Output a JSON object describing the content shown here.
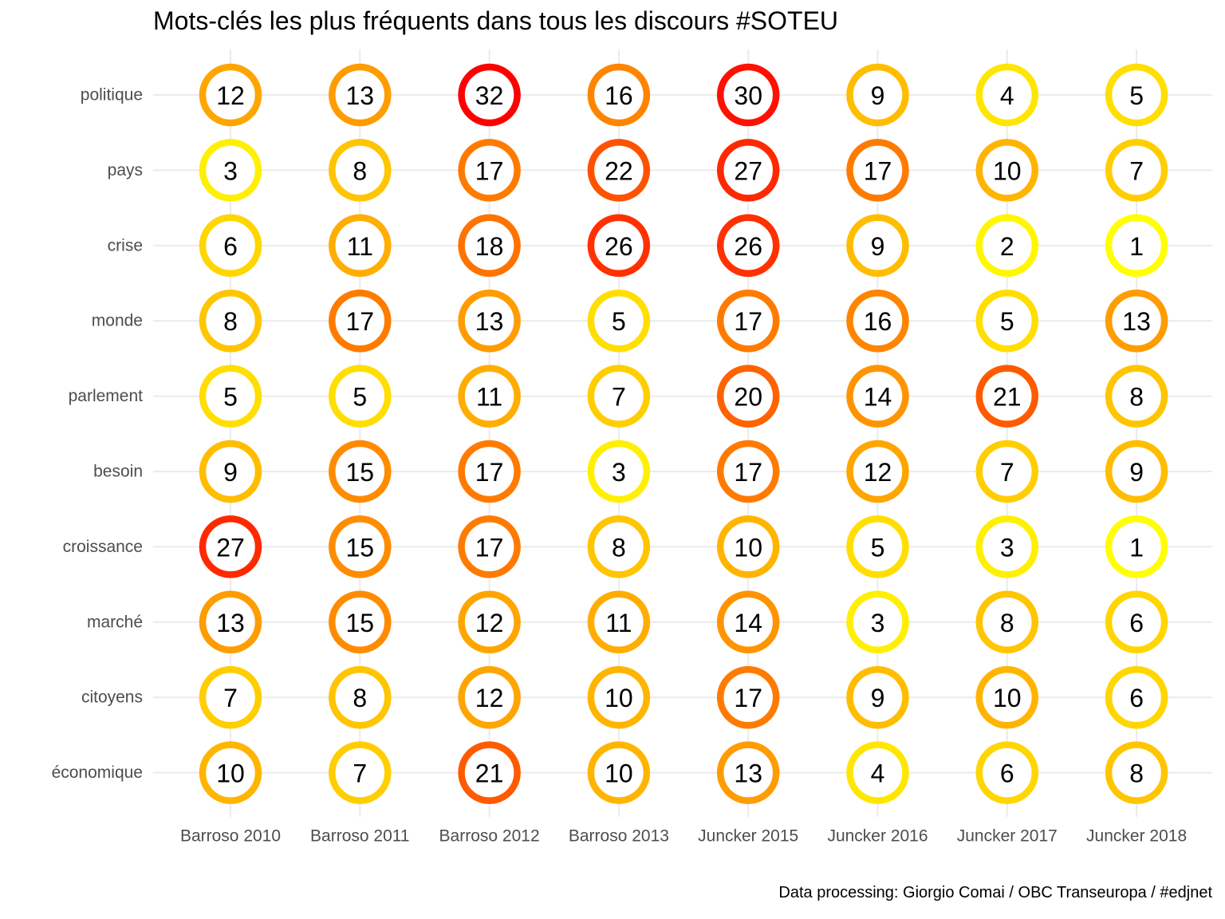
{
  "chart_data": {
    "type": "heatmap",
    "title": "Mots-clés les plus fréquents dans tous les discours #SOTEU",
    "caption": "Data processing:  Giorgio Comai / OBC Transeuropa / #edjnet",
    "x_categories": [
      "Barroso 2010",
      "Barroso 2011",
      "Barroso 2012",
      "Barroso 2013",
      "Juncker 2015",
      "Juncker 2016",
      "Juncker 2017",
      "Juncker 2018"
    ],
    "y_categories": [
      "politique",
      "pays",
      "crise",
      "monde",
      "parlement",
      "besoin",
      "croissance",
      "marché",
      "citoyens",
      "économique"
    ],
    "values": [
      [
        12,
        13,
        32,
        16,
        30,
        9,
        4,
        5
      ],
      [
        3,
        8,
        17,
        22,
        27,
        17,
        10,
        7
      ],
      [
        6,
        11,
        18,
        26,
        26,
        9,
        2,
        1
      ],
      [
        8,
        17,
        13,
        5,
        17,
        16,
        5,
        13
      ],
      [
        5,
        5,
        11,
        7,
        20,
        14,
        21,
        8
      ],
      [
        9,
        15,
        17,
        3,
        17,
        12,
        7,
        9
      ],
      [
        27,
        15,
        17,
        8,
        10,
        5,
        3,
        1
      ],
      [
        13,
        15,
        12,
        11,
        14,
        3,
        8,
        6
      ],
      [
        7,
        8,
        12,
        10,
        17,
        9,
        10,
        6
      ],
      [
        10,
        7,
        21,
        10,
        13,
        4,
        6,
        8
      ]
    ],
    "color_scale": {
      "low": "#ffff00",
      "high": "#ff0000",
      "min": 1,
      "max": 32
    },
    "grid": true,
    "legend": "none"
  }
}
